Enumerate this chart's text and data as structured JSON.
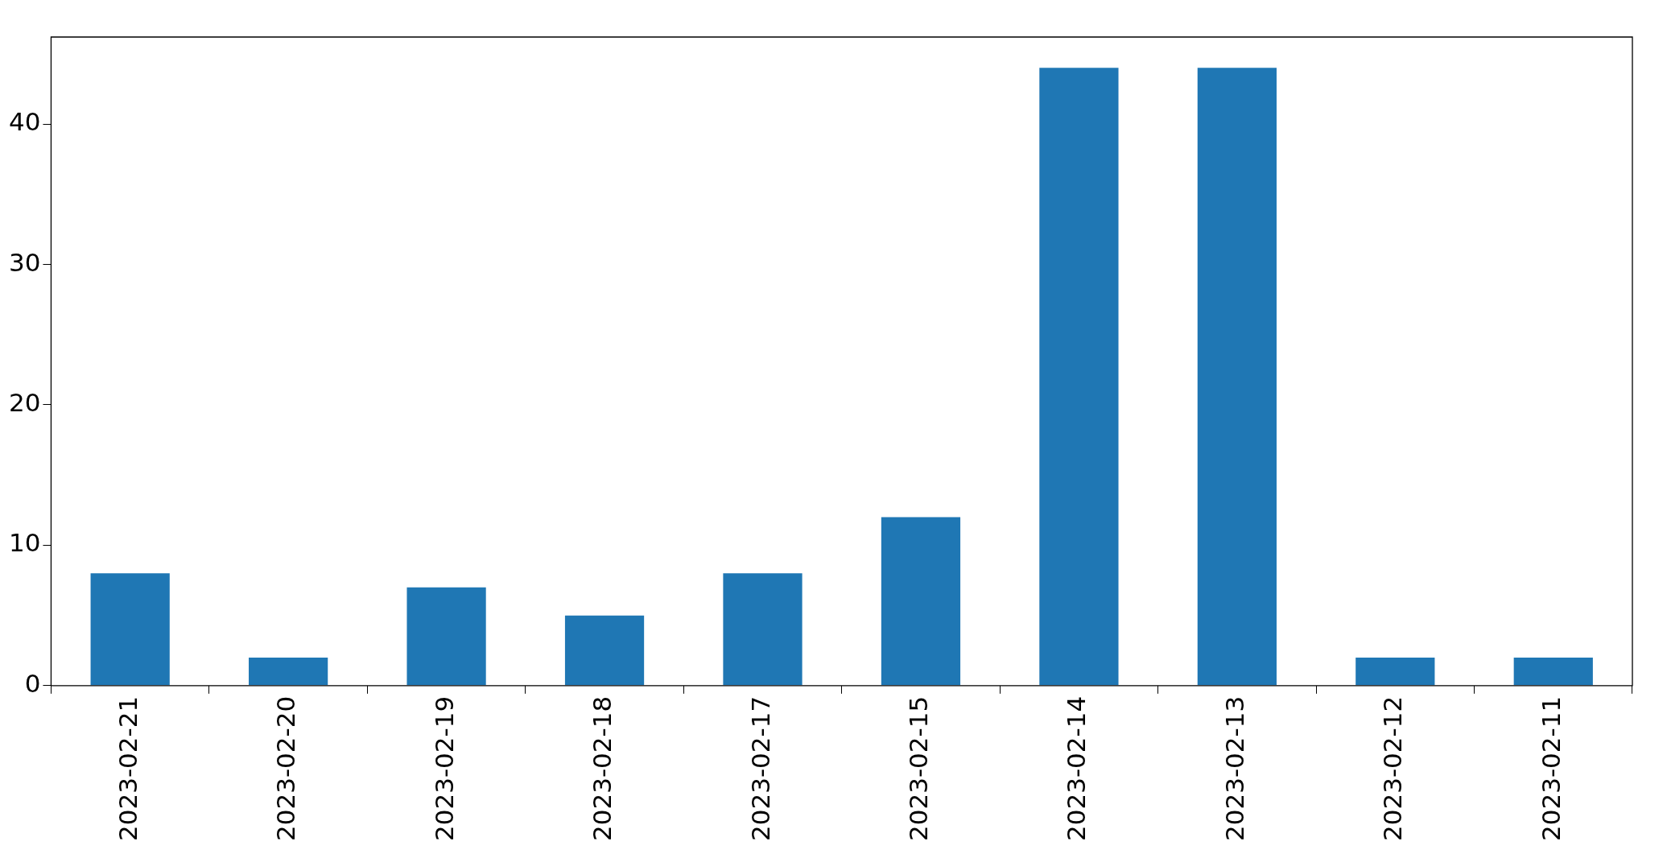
{
  "chart_data": {
    "type": "bar",
    "categories": [
      "2023-02-21",
      "2023-02-20",
      "2023-02-19",
      "2023-02-18",
      "2023-02-17",
      "2023-02-15",
      "2023-02-14",
      "2023-02-13",
      "2023-02-12",
      "2023-02-11"
    ],
    "values": [
      8,
      2,
      7,
      5,
      8,
      12,
      44,
      44,
      2,
      2
    ],
    "color": "#1f77b4",
    "ylim": [
      0,
      46.2
    ],
    "yticks": [
      0,
      10,
      20,
      30,
      40
    ],
    "grid": false,
    "legend": false
  }
}
